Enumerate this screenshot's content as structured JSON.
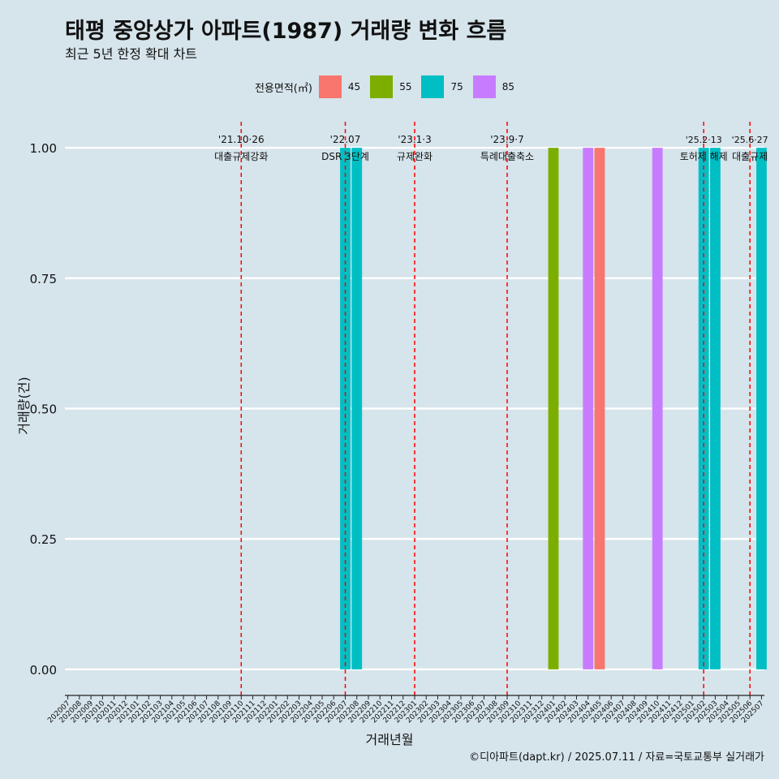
{
  "chart_data": {
    "type": "bar",
    "title": "태평 중앙상가 아파트(1987) 거래량 변화 흐름",
    "subtitle": "최근 5년 한정 확대 차트",
    "xlabel": "거래년월",
    "ylabel": "거래량(건)",
    "caption": "©디아파트(dapt.kr) / 2025.07.11 / 자료=국토교통부 실거래가",
    "ylim": [
      -0.05,
      1.05
    ],
    "yticks": [
      "0.00",
      "0.25",
      "0.50",
      "0.75",
      "1.00"
    ],
    "categories": [
      "202007",
      "202008",
      "202009",
      "202010",
      "202011",
      "202012",
      "202101",
      "202102",
      "202103",
      "202104",
      "202105",
      "202106",
      "202107",
      "202108",
      "202109",
      "202110",
      "202111",
      "202112",
      "202201",
      "202202",
      "202203",
      "202204",
      "202205",
      "202206",
      "202207",
      "202208",
      "202209",
      "202210",
      "202211",
      "202212",
      "202301",
      "202302",
      "202303",
      "202304",
      "202305",
      "202306",
      "202307",
      "202308",
      "202309",
      "202310",
      "202311",
      "202312",
      "202401",
      "202402",
      "202403",
      "202404",
      "202405",
      "202406",
      "202407",
      "202408",
      "202409",
      "202410",
      "202411",
      "202412",
      "202501",
      "202502",
      "202503",
      "202504",
      "202505",
      "202506",
      "202507"
    ],
    "legend": {
      "title": "전용면적(㎡)",
      "position": "top"
    },
    "series": [
      {
        "name": "45",
        "color": "#f8766d",
        "points": [
          {
            "x": "202405",
            "y": 1
          }
        ]
      },
      {
        "name": "55",
        "color": "#7cae00",
        "points": [
          {
            "x": "202401",
            "y": 1
          }
        ]
      },
      {
        "name": "75",
        "color": "#00bfc4",
        "points": [
          {
            "x": "202207",
            "y": 1
          },
          {
            "x": "202208",
            "y": 1
          },
          {
            "x": "202502",
            "y": 1
          },
          {
            "x": "202503",
            "y": 1
          },
          {
            "x": "202507",
            "y": 1
          }
        ]
      },
      {
        "name": "85",
        "color": "#c77cff",
        "points": [
          {
            "x": "202404",
            "y": 1
          },
          {
            "x": "202410",
            "y": 1
          }
        ]
      }
    ],
    "annotations": [
      {
        "x": "202110",
        "date": "'21.10·26",
        "label": "대출규제강화"
      },
      {
        "x": "202207",
        "date": "'22.07",
        "label": "DSR 3단계"
      },
      {
        "x": "202301",
        "date": "'23.1·3",
        "label": "규제완화"
      },
      {
        "x": "202309",
        "date": "'23.9·7",
        "label": "특례대출축소"
      },
      {
        "x": "202502",
        "date": "'25.2·13",
        "label": "토허제 해제"
      },
      {
        "x": "202506",
        "date": "'25.6·27",
        "label": "대출규제"
      }
    ],
    "grid": true
  }
}
